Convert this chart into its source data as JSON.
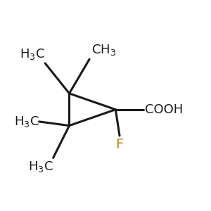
{
  "background_color": "#ffffff",
  "line_color": "#1a1a1a",
  "line_width": 2.2,
  "F_color": "#b8860b",
  "font_size": 13,
  "C2": [
    0.32,
    0.56
  ],
  "C3": [
    0.32,
    0.4
  ],
  "C1": [
    0.55,
    0.48
  ],
  "xlim": [
    0,
    1
  ],
  "ylim": [
    0,
    1
  ]
}
